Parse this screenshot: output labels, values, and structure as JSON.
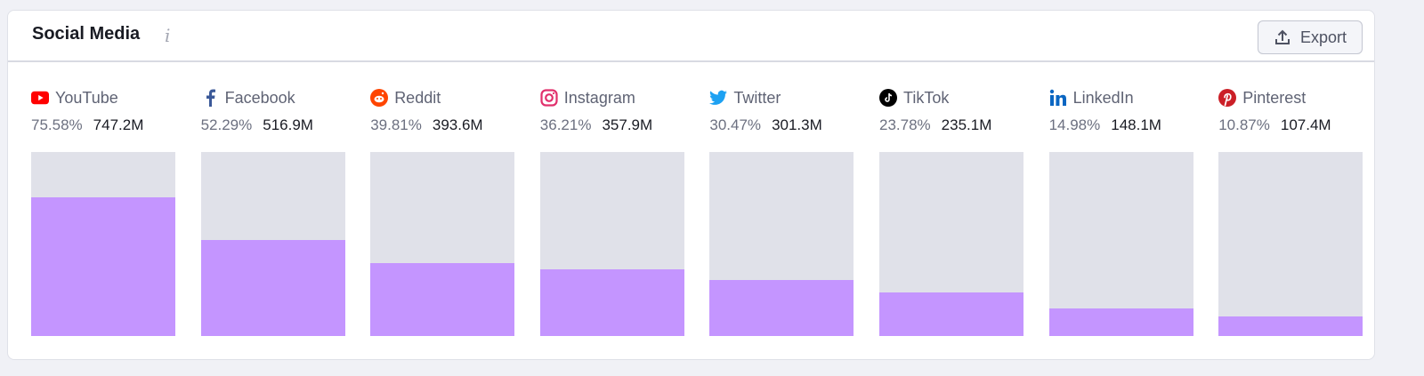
{
  "header": {
    "title": "Social Media",
    "info_icon": "info-icon",
    "export_label": "Export",
    "export_icon": "upload-icon"
  },
  "colors": {
    "fill": "#c495ff",
    "track": "#e0e1e9"
  },
  "platforms": [
    {
      "name": "YouTube",
      "percent": "75.58%",
      "value": "747.2M",
      "fraction": 0.7558,
      "icon": "youtube-icon"
    },
    {
      "name": "Facebook",
      "percent": "52.29%",
      "value": "516.9M",
      "fraction": 0.5229,
      "icon": "facebook-icon"
    },
    {
      "name": "Reddit",
      "percent": "39.81%",
      "value": "393.6M",
      "fraction": 0.3981,
      "icon": "reddit-icon"
    },
    {
      "name": "Instagram",
      "percent": "36.21%",
      "value": "357.9M",
      "fraction": 0.3621,
      "icon": "instagram-icon"
    },
    {
      "name": "Twitter",
      "percent": "30.47%",
      "value": "301.3M",
      "fraction": 0.3047,
      "icon": "twitter-icon"
    },
    {
      "name": "TikTok",
      "percent": "23.78%",
      "value": "235.1M",
      "fraction": 0.2378,
      "icon": "tiktok-icon"
    },
    {
      "name": "LinkedIn",
      "percent": "14.98%",
      "value": "148.1M",
      "fraction": 0.1498,
      "icon": "linkedin-icon"
    },
    {
      "name": "Pinterest",
      "percent": "10.87%",
      "value": "107.4M",
      "fraction": 0.1087,
      "icon": "pinterest-icon"
    }
  ]
}
